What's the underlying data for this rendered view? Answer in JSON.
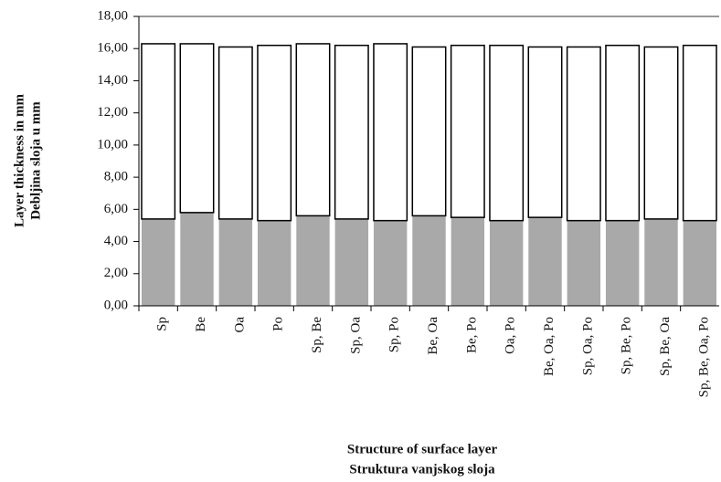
{
  "chart_data": {
    "type": "stacked-bar",
    "y_label": [
      "Layer thickness in mm",
      "Debljina sloja u mm"
    ],
    "x_label": [
      "Structure of surface layer",
      "Struktura vanjskog sloja"
    ],
    "categories": [
      "Sp",
      "Be",
      "Oa",
      "Po",
      "Sp, Be",
      "Sp, Oa",
      "Sp, Po",
      "Be, Oa",
      "Be, Po",
      "Oa, Po",
      "Be, Oa, Po",
      "Sp, Oa, Po",
      "Sp, Be, Po",
      "Sp, Be, Oa",
      "Sp, Be, Oa, Po"
    ],
    "series": [
      {
        "color": "#a9a9a9",
        "values": [
          5.4,
          5.8,
          5.4,
          5.3,
          5.6,
          5.4,
          5.3,
          5.6,
          5.5,
          5.3,
          5.5,
          5.3,
          5.3,
          5.4,
          5.3
        ]
      },
      {
        "color": "#ffffff",
        "values": [
          10.9,
          10.5,
          10.7,
          10.9,
          10.7,
          10.8,
          11.0,
          10.5,
          10.7,
          10.9,
          10.6,
          10.8,
          10.9,
          10.7,
          10.9
        ]
      }
    ],
    "ylim": [
      0,
      18
    ],
    "yticks": [
      {
        "value": 0,
        "label": "0,00"
      },
      {
        "value": 2,
        "label": "2,00"
      },
      {
        "value": 4,
        "label": "4,00"
      },
      {
        "value": 6,
        "label": "6,00"
      },
      {
        "value": 8,
        "label": "8,00"
      },
      {
        "value": 10,
        "label": "10,00"
      },
      {
        "value": 12,
        "label": "12,00"
      },
      {
        "value": 14,
        "label": "14,00"
      },
      {
        "value": 16,
        "label": "16,00"
      },
      {
        "value": 18,
        "label": "18,00"
      }
    ]
  }
}
